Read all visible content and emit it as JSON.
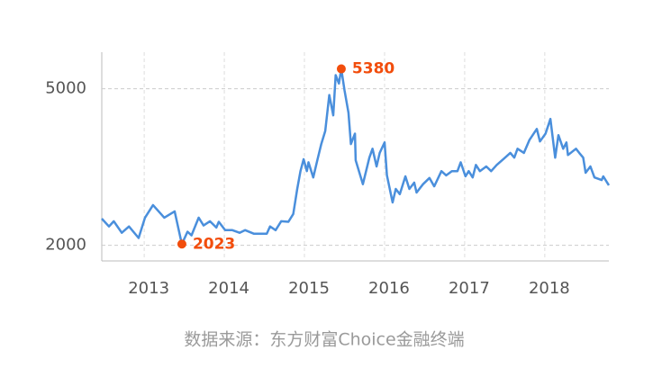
{
  "chart_data": {
    "type": "line",
    "source": "数据来源：东方财富Choice金融终端",
    "x": [
      2012.47,
      2012.56,
      2012.62,
      2012.72,
      2012.81,
      2012.93,
      2013.01,
      2013.11,
      2013.25,
      2013.38,
      2013.47,
      2013.54,
      2013.59,
      2013.68,
      2013.74,
      2013.82,
      2013.9,
      2013.93,
      2014.01,
      2014.1,
      2014.19,
      2014.26,
      2014.37,
      2014.53,
      2014.57,
      2014.64,
      2014.71,
      2014.8,
      2014.86,
      2014.91,
      2014.95,
      2014.99,
      2015.03,
      2015.05,
      2015.11,
      2015.16,
      2015.21,
      2015.26,
      2015.31,
      2015.36,
      2015.39,
      2015.43,
      2015.46,
      2015.5,
      2015.55,
      2015.58,
      2015.63,
      2015.64,
      2015.73,
      2015.81,
      2015.85,
      2015.9,
      2015.94,
      2016.0,
      2016.03,
      2016.1,
      2016.14,
      2016.19,
      2016.26,
      2016.31,
      2016.37,
      2016.4,
      2016.48,
      2016.56,
      2016.62,
      2016.71,
      2016.77,
      2016.84,
      2016.91,
      2016.95,
      2017.01,
      2017.05,
      2017.1,
      2017.14,
      2017.19,
      2017.27,
      2017.33,
      2017.4,
      2017.49,
      2017.57,
      2017.62,
      2017.66,
      2017.74,
      2017.81,
      2017.9,
      2017.94,
      2018.01,
      2018.07,
      2018.13,
      2018.17,
      2018.23,
      2018.27,
      2018.29,
      2018.39,
      2018.43,
      2018.48,
      2018.51,
      2018.57,
      2018.62,
      2018.71,
      2018.73,
      2018.8
    ],
    "series": [
      {
        "color": "#4a8fdc",
        "values": [
          2510,
          2360,
          2460,
          2240,
          2360,
          2140,
          2530,
          2770,
          2530,
          2650,
          2023,
          2260,
          2190,
          2530,
          2380,
          2460,
          2340,
          2450,
          2290,
          2290,
          2240,
          2290,
          2220,
          2220,
          2360,
          2290,
          2460,
          2450,
          2600,
          3080,
          3420,
          3650,
          3420,
          3590,
          3300,
          3630,
          3940,
          4190,
          4880,
          4490,
          5260,
          5100,
          5380,
          4970,
          4540,
          3940,
          4140,
          3630,
          3170,
          3680,
          3850,
          3510,
          3770,
          3970,
          3340,
          2820,
          3080,
          2980,
          3320,
          3080,
          3200,
          3010,
          3170,
          3290,
          3130,
          3420,
          3340,
          3420,
          3420,
          3590,
          3320,
          3420,
          3300,
          3540,
          3420,
          3510,
          3420,
          3540,
          3660,
          3770,
          3680,
          3850,
          3770,
          4020,
          4230,
          3990,
          4140,
          4420,
          3680,
          4110,
          3850,
          3970,
          3730,
          3850,
          3770,
          3680,
          3390,
          3510,
          3300,
          3250,
          3320,
          3150
        ]
      }
    ],
    "highlight_indices": [
      10,
      42
    ],
    "highlight_color": "#f24d0c",
    "xlim": [
      2012.47,
      2018.8
    ],
    "xticks": [
      2013,
      2014,
      2015,
      2016,
      2017,
      2018
    ],
    "ylim": [
      1700,
      5700
    ],
    "yticks": [
      2000,
      5000
    ],
    "grid": true
  }
}
